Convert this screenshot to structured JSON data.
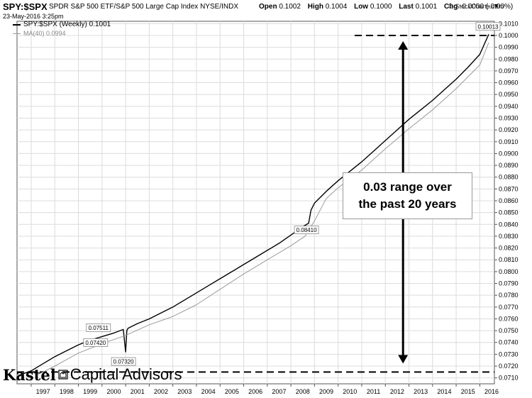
{
  "header": {
    "symbol": "SPY:$SPX",
    "description": "SPDR S&P 500 ETF/S&P 500 Large Cap Index  NYSE/INDX",
    "timestamp": "23-May-2016 3:25pm",
    "open_label": "Open",
    "open_value": "0.1002",
    "high_label": "High",
    "high_value": "0.1004",
    "low_label": "Low",
    "low_value": "0.1000",
    "last_label": "Last",
    "last_value": "0.1001",
    "chg_label": "Chg",
    "chg_value": "-0.0000 (-0.00%)",
    "credit": "© StockCharts.com"
  },
  "legend": {
    "series_label": "SPY:$SPX (Weekly) 0.1001",
    "ma_label": "MA(40) 0.0994"
  },
  "annotation": {
    "callout_text": "0.03 range over\nthe past 20 years"
  },
  "branding": {
    "name_bold": "Kastel",
    "name_rest": "Capital Advisors"
  },
  "colors": {
    "price_line": "#000000",
    "ma_line": "#9a9a9a",
    "grid": "#dcdcdc",
    "dashed": "#000000"
  },
  "chart_data": {
    "type": "line",
    "x_labels": [
      "1997",
      "1998",
      "1999",
      "2000",
      "2001",
      "2002",
      "2003",
      "2004",
      "2005",
      "2006",
      "2007",
      "2008",
      "2009",
      "2010",
      "2011",
      "2012",
      "2013",
      "2014",
      "2015",
      "2016"
    ],
    "x_range": [
      1996.4,
      2016.62
    ],
    "y_range": [
      0.0705,
      0.1012
    ],
    "y_ticks": [
      0.071,
      0.072,
      0.073,
      0.074,
      0.075,
      0.076,
      0.077,
      0.078,
      0.079,
      0.08,
      0.081,
      0.082,
      0.083,
      0.084,
      0.085,
      0.086,
      0.087,
      0.088,
      0.089,
      0.09,
      0.091,
      0.092,
      0.093,
      0.094,
      0.095,
      0.096,
      0.097,
      0.098,
      0.099,
      0.1,
      0.101
    ],
    "y_tick_labels": [
      "0.0710",
      "0.0720",
      "0.0730",
      "0.0740",
      "0.0750",
      "0.0760",
      "0.0770",
      "0.0780",
      "0.0790",
      "0.0800",
      "0.0810",
      "0.0820",
      "0.0830",
      "0.0840",
      "0.0850",
      "0.0860",
      "0.0870",
      "0.0880",
      "0.0890",
      "0.0900",
      "0.0910",
      "0.0920",
      "0.0930",
      "0.0940",
      "0.0950",
      "0.0960",
      "0.0970",
      "0.0980",
      "0.0990",
      "0.1000",
      "0.1010"
    ],
    "series": [
      {
        "name": "SPY:$SPX (Weekly)",
        "x": [
          1996.45,
          1997.0,
          1997.5,
          1998.0,
          1998.5,
          1999.0,
          1999.5,
          2000.0,
          2000.5,
          2000.9,
          2001.0,
          2001.05,
          2001.1,
          2001.5,
          2002.0,
          2002.5,
          2003.0,
          2003.5,
          2004.0,
          2004.5,
          2005.0,
          2005.5,
          2006.0,
          2006.5,
          2007.0,
          2007.5,
          2008.0,
          2008.5,
          2008.75,
          2008.85,
          2009.0,
          2009.5,
          2010.0,
          2010.5,
          2011.0,
          2011.5,
          2012.0,
          2012.5,
          2013.0,
          2013.5,
          2014.0,
          2014.5,
          2015.0,
          2015.5,
          2016.0,
          2016.38
        ],
        "y": [
          0.0712,
          0.0716,
          0.0722,
          0.0728,
          0.0733,
          0.0738,
          0.0742,
          0.0745,
          0.0748,
          0.0751,
          0.0732,
          0.075,
          0.0752,
          0.0756,
          0.076,
          0.0765,
          0.077,
          0.0776,
          0.0782,
          0.0788,
          0.0794,
          0.08,
          0.0806,
          0.0812,
          0.0818,
          0.0824,
          0.0831,
          0.0838,
          0.0841,
          0.0852,
          0.0858,
          0.0868,
          0.0877,
          0.0885,
          0.0893,
          0.0902,
          0.0911,
          0.092,
          0.0929,
          0.0937,
          0.0945,
          0.0954,
          0.0963,
          0.0973,
          0.0984,
          0.1001
        ]
      },
      {
        "name": "MA(40)",
        "x": [
          1997.3,
          1998.0,
          1999.0,
          2000.0,
          2001.0,
          2002.0,
          2003.0,
          2004.0,
          2005.0,
          2006.0,
          2007.0,
          2008.0,
          2008.6,
          2009.0,
          2009.5,
          2010.0,
          2011.0,
          2012.0,
          2013.0,
          2014.0,
          2015.0,
          2016.0,
          2016.38
        ],
        "y": [
          0.0713,
          0.072,
          0.0731,
          0.0739,
          0.0746,
          0.0755,
          0.0762,
          0.0772,
          0.0785,
          0.0798,
          0.081,
          0.0822,
          0.083,
          0.0843,
          0.0862,
          0.0871,
          0.0886,
          0.0904,
          0.0921,
          0.0937,
          0.0955,
          0.0975,
          0.0994
        ]
      }
    ],
    "point_annotations": [
      {
        "x": 2000.9,
        "y": 0.0751,
        "label": "0.07511"
      },
      {
        "x": 2000.6,
        "y": 0.0742,
        "label": "0.07420"
      },
      {
        "x": 2001.0,
        "y": 0.0732,
        "label": "0.07320"
      },
      {
        "x": 2008.75,
        "y": 0.0841,
        "label": "0.08410"
      },
      {
        "x": 2016.38,
        "y": 0.10013,
        "label": "0.10013"
      }
    ],
    "reference_levels": [
      0.1,
      0.0715
    ],
    "range_arrow": {
      "x": 2012.75,
      "from": 0.0715,
      "to": 0.1
    }
  }
}
